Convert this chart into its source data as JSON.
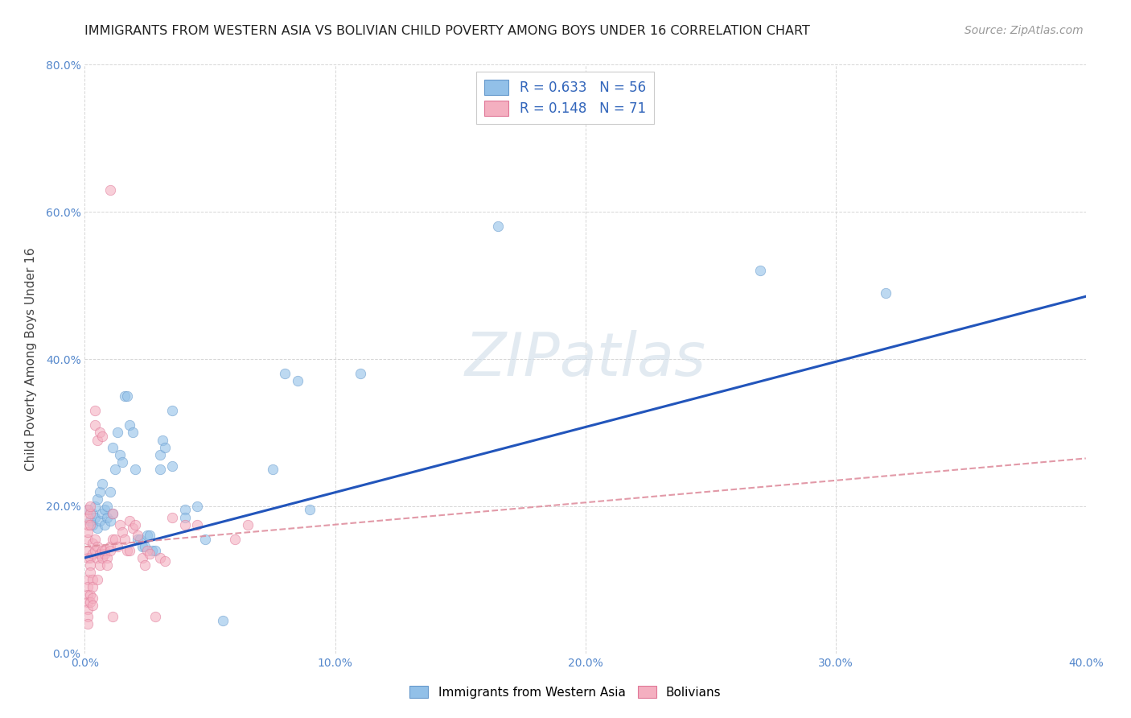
{
  "title": "IMMIGRANTS FROM WESTERN ASIA VS BOLIVIAN CHILD POVERTY AMONG BOYS UNDER 16 CORRELATION CHART",
  "source": "Source: ZipAtlas.com",
  "xlim": [
    0.0,
    0.4
  ],
  "ylim": [
    0.0,
    0.8
  ],
  "ylabel": "Child Poverty Among Boys Under 16",
  "watermark": "ZIPatlas",
  "blue_scatter": [
    [
      0.001,
      0.195
    ],
    [
      0.002,
      0.18
    ],
    [
      0.003,
      0.19
    ],
    [
      0.003,
      0.175
    ],
    [
      0.004,
      0.2
    ],
    [
      0.004,
      0.185
    ],
    [
      0.005,
      0.21
    ],
    [
      0.005,
      0.17
    ],
    [
      0.006,
      0.22
    ],
    [
      0.006,
      0.18
    ],
    [
      0.007,
      0.23
    ],
    [
      0.007,
      0.19
    ],
    [
      0.008,
      0.195
    ],
    [
      0.008,
      0.175
    ],
    [
      0.009,
      0.2
    ],
    [
      0.009,
      0.185
    ],
    [
      0.01,
      0.22
    ],
    [
      0.01,
      0.18
    ],
    [
      0.011,
      0.28
    ],
    [
      0.011,
      0.19
    ],
    [
      0.012,
      0.25
    ],
    [
      0.013,
      0.3
    ],
    [
      0.014,
      0.27
    ],
    [
      0.015,
      0.26
    ],
    [
      0.016,
      0.35
    ],
    [
      0.017,
      0.35
    ],
    [
      0.018,
      0.31
    ],
    [
      0.019,
      0.3
    ],
    [
      0.02,
      0.25
    ],
    [
      0.021,
      0.155
    ],
    [
      0.022,
      0.155
    ],
    [
      0.023,
      0.145
    ],
    [
      0.024,
      0.145
    ],
    [
      0.025,
      0.16
    ],
    [
      0.026,
      0.16
    ],
    [
      0.027,
      0.14
    ],
    [
      0.028,
      0.14
    ],
    [
      0.03,
      0.25
    ],
    [
      0.03,
      0.27
    ],
    [
      0.031,
      0.29
    ],
    [
      0.032,
      0.28
    ],
    [
      0.035,
      0.33
    ],
    [
      0.035,
      0.255
    ],
    [
      0.04,
      0.195
    ],
    [
      0.04,
      0.185
    ],
    [
      0.045,
      0.2
    ],
    [
      0.048,
      0.155
    ],
    [
      0.055,
      0.045
    ],
    [
      0.075,
      0.25
    ],
    [
      0.08,
      0.38
    ],
    [
      0.085,
      0.37
    ],
    [
      0.09,
      0.195
    ],
    [
      0.11,
      0.38
    ],
    [
      0.165,
      0.58
    ],
    [
      0.27,
      0.52
    ],
    [
      0.32,
      0.49
    ]
  ],
  "pink_scatter": [
    [
      0.001,
      0.13
    ],
    [
      0.001,
      0.14
    ],
    [
      0.001,
      0.155
    ],
    [
      0.001,
      0.165
    ],
    [
      0.001,
      0.175
    ],
    [
      0.001,
      0.185
    ],
    [
      0.001,
      0.195
    ],
    [
      0.001,
      0.1
    ],
    [
      0.001,
      0.09
    ],
    [
      0.001,
      0.08
    ],
    [
      0.001,
      0.07
    ],
    [
      0.001,
      0.06
    ],
    [
      0.001,
      0.05
    ],
    [
      0.001,
      0.04
    ],
    [
      0.002,
      0.13
    ],
    [
      0.002,
      0.12
    ],
    [
      0.002,
      0.11
    ],
    [
      0.002,
      0.19
    ],
    [
      0.002,
      0.175
    ],
    [
      0.002,
      0.2
    ],
    [
      0.002,
      0.08
    ],
    [
      0.002,
      0.07
    ],
    [
      0.003,
      0.15
    ],
    [
      0.003,
      0.135
    ],
    [
      0.003,
      0.1
    ],
    [
      0.003,
      0.09
    ],
    [
      0.003,
      0.075
    ],
    [
      0.003,
      0.065
    ],
    [
      0.004,
      0.155
    ],
    [
      0.004,
      0.14
    ],
    [
      0.004,
      0.31
    ],
    [
      0.004,
      0.33
    ],
    [
      0.005,
      0.145
    ],
    [
      0.005,
      0.13
    ],
    [
      0.005,
      0.1
    ],
    [
      0.005,
      0.29
    ],
    [
      0.006,
      0.135
    ],
    [
      0.006,
      0.12
    ],
    [
      0.006,
      0.3
    ],
    [
      0.007,
      0.295
    ],
    [
      0.007,
      0.14
    ],
    [
      0.007,
      0.13
    ],
    [
      0.008,
      0.135
    ],
    [
      0.008,
      0.14
    ],
    [
      0.009,
      0.13
    ],
    [
      0.009,
      0.12
    ],
    [
      0.01,
      0.145
    ],
    [
      0.01,
      0.14
    ],
    [
      0.01,
      0.63
    ],
    [
      0.011,
      0.155
    ],
    [
      0.011,
      0.19
    ],
    [
      0.011,
      0.05
    ],
    [
      0.012,
      0.155
    ],
    [
      0.013,
      0.145
    ],
    [
      0.014,
      0.175
    ],
    [
      0.015,
      0.165
    ],
    [
      0.016,
      0.155
    ],
    [
      0.017,
      0.14
    ],
    [
      0.018,
      0.14
    ],
    [
      0.018,
      0.18
    ],
    [
      0.019,
      0.17
    ],
    [
      0.02,
      0.175
    ],
    [
      0.021,
      0.16
    ],
    [
      0.023,
      0.13
    ],
    [
      0.024,
      0.12
    ],
    [
      0.025,
      0.14
    ],
    [
      0.026,
      0.135
    ],
    [
      0.028,
      0.05
    ],
    [
      0.03,
      0.13
    ],
    [
      0.032,
      0.125
    ],
    [
      0.035,
      0.185
    ],
    [
      0.04,
      0.175
    ],
    [
      0.045,
      0.175
    ],
    [
      0.06,
      0.155
    ],
    [
      0.065,
      0.175
    ]
  ],
  "blue_line_x": [
    0.0,
    0.4
  ],
  "blue_line_y": [
    0.13,
    0.485
  ],
  "pink_line_x": [
    0.0,
    0.4
  ],
  "pink_line_y": [
    0.145,
    0.265
  ],
  "grid_color": "#cccccc",
  "scatter_alpha": 0.6,
  "scatter_size": 80,
  "blue_color": "#92c0e8",
  "blue_edge": "#6699cc",
  "pink_color": "#f4afc0",
  "pink_edge": "#e07898",
  "blue_line_color": "#2255bb",
  "pink_line_color": "#dd8899",
  "title_fontsize": 11.5,
  "source_fontsize": 10,
  "axis_label_fontsize": 11,
  "tick_fontsize": 10,
  "tick_color": "#5588cc",
  "ylabel_color": "#444444"
}
